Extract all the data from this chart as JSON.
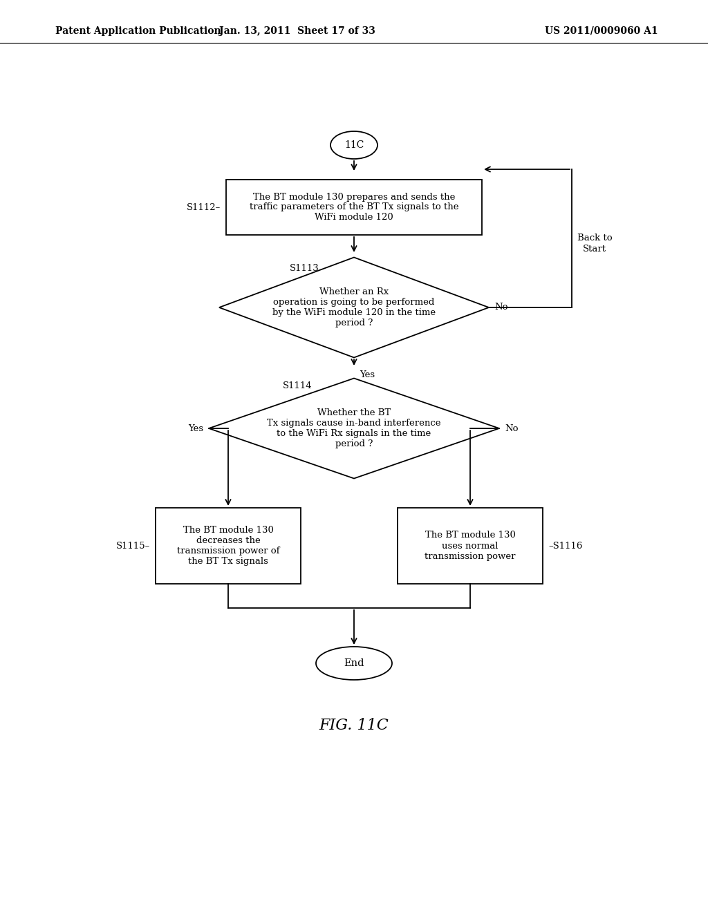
{
  "background_color": "#ffffff",
  "header_left": "Patent Application Publication",
  "header_center": "Jan. 13, 2011  Sheet 17 of 33",
  "header_right": "US 2011/0009060 A1",
  "figure_label": "FIG. 11C",
  "line_width": 1.3
}
